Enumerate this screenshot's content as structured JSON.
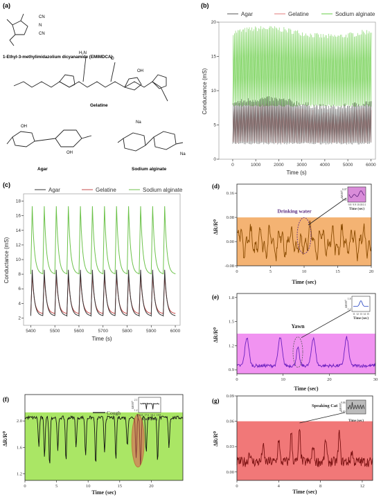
{
  "panels": {
    "a": {
      "label": "(a)",
      "compounds": [
        {
          "name": "1-Ethyl-3-methylimidazolium dicyanamide (EMIMDCA)"
        },
        {
          "name": "Gelatine"
        },
        {
          "name": "Agar"
        },
        {
          "name": "Sodium alginate"
        }
      ],
      "atoms": {
        "cn": "CN",
        "n": "N",
        "na": "Na",
        "oh": "OH",
        "o": "O",
        "nh2": "NH₂",
        "h2n": "H₂N",
        "nh": "NH"
      }
    }
  },
  "chart_data": [
    {
      "id": "b",
      "label": "(b)",
      "type": "line",
      "xlabel": "Time (s)",
      "ylabel": "Conductance (mS)",
      "xlim": [
        -600,
        6200
      ],
      "ylim": [
        0,
        20
      ],
      "xticks": [
        "0",
        "1000",
        "2000",
        "3000",
        "4000",
        "5000",
        "6000"
      ],
      "yticks": [
        "0",
        "5",
        "10",
        "15",
        "20"
      ],
      "legend": {
        "position": "top",
        "entries": [
          "Agar",
          "Gelatine",
          "Sodium alginate"
        ]
      },
      "series": [
        {
          "name": "Agar",
          "color": "#555555",
          "peak": 8.2,
          "base": 2.3
        },
        {
          "name": "Gelatine",
          "color": "#e07a7a",
          "peak": 7.2,
          "base": 2.5
        },
        {
          "name": "Sodium alginate",
          "color": "#66cc44",
          "peak": 18.5,
          "base": 7.8
        }
      ],
      "x_range": [
        0,
        6000
      ]
    },
    {
      "id": "c",
      "label": "(c)",
      "type": "line",
      "xlabel": "Time (s)",
      "ylabel": "Conductance (mS)",
      "xlim": [
        5370,
        6020
      ],
      "ylim": [
        1,
        19
      ],
      "xticks": [
        "5400",
        "5500",
        "5600",
        "5700",
        "5800",
        "5900",
        "6000"
      ],
      "yticks": [
        "2",
        "4",
        "6",
        "8",
        "10",
        "12",
        "14",
        "16",
        "18"
      ],
      "legend": {
        "position": "top",
        "entries": [
          "Agar",
          "Gelatine",
          "Sodium alginate"
        ]
      },
      "series": [
        {
          "name": "Agar",
          "color": "#333333",
          "peak": 8.6,
          "base": 2.3
        },
        {
          "name": "Gelatine",
          "color": "#c74a4a",
          "peak": 8.0,
          "base": 2.6
        },
        {
          "name": "Sodium alginate",
          "color": "#6cc24a",
          "peak": 17.3,
          "base": 8.0
        }
      ],
      "period": 50,
      "start": 5400
    },
    {
      "id": "d",
      "label": "(d)",
      "type": "line",
      "xlabel": "Time (sec)",
      "ylabel": "ΔR/R⁰",
      "xlim": [
        0,
        20
      ],
      "ylim": [
        -0.08,
        0.19
      ],
      "xticks": [
        "0",
        "5",
        "10",
        "15",
        "20"
      ],
      "yticks": [
        "-0.08",
        "0.00",
        "0.08",
        "0.16"
      ],
      "band": {
        "from": -0.08,
        "to": 0.08,
        "color": "#f2a65a"
      },
      "line_color": "#8a4b00",
      "annotation": "Drinking water",
      "annotation_color": "#5a2d82",
      "inset": {
        "xlabel": "Time (sec)",
        "ylabel": "ΔR/R⁰",
        "xticks": [
          "9.8",
          "9.9",
          "10.0",
          "10.1"
        ],
        "yticks": [
          "0.07",
          "0.00"
        ],
        "bg": "#d98cd9",
        "line_color": "#5a1e7a"
      }
    },
    {
      "id": "e",
      "label": "(e)",
      "type": "line",
      "xlabel": "Time (sec)",
      "ylabel": "ΔR/R⁰",
      "xlim": [
        0,
        30
      ],
      "ylim": [
        0.85,
        1.85
      ],
      "xticks": [
        "0",
        "10",
        "20",
        "30"
      ],
      "yticks": [
        "0.9",
        "1.2",
        "1.5",
        "1.8"
      ],
      "band": {
        "from": 0.85,
        "to": 1.35,
        "color": "#ee80ee"
      },
      "line_color": "#6a1fbf",
      "annotation": "Yawn",
      "annotation_color": "#222222",
      "inset": {
        "xlabel": "Time (sec)",
        "ylabel": "ΔR/R⁰",
        "xticks": [
          "11",
          "12",
          "13",
          "14",
          "15"
        ],
        "yticks": [
          "1.8",
          "1.2"
        ],
        "bg": "#ffffff",
        "line_color": "#1f3fbf"
      }
    },
    {
      "id": "f",
      "label": "(f)",
      "type": "line",
      "xlabel": "Time (sec)",
      "ylabel": "ΔR/R⁰",
      "xlim": [
        0,
        25
      ],
      "ylim": [
        1.1,
        2.4
      ],
      "xticks": [
        "0",
        "5",
        "10",
        "15",
        "20"
      ],
      "yticks": [
        "1.2",
        "1.6",
        "2.0"
      ],
      "band": {
        "from": 1.1,
        "to": 2.13,
        "color": "#9be24a"
      },
      "line_color": "#111111",
      "legend_entry": "Cough",
      "annotation_color": "#cc2222",
      "inset": {
        "xlabel": "Time (sec)",
        "ylabel": "ΔR/R⁰",
        "xticks": [
          "16.8",
          "17.6",
          "18.2",
          "18.8"
        ],
        "yticks": [
          "2.1",
          "1.2"
        ],
        "bg": "#ffffff",
        "line_color": "#111111"
      }
    },
    {
      "id": "g",
      "label": "(g)",
      "type": "line",
      "xlabel": "Time (sec)",
      "ylabel": "ΔR/R⁰",
      "xlim": [
        0,
        13
      ],
      "ylim": [
        -0.01,
        0.09
      ],
      "xticks": [
        "0",
        "4",
        "8",
        "12"
      ],
      "yticks": [
        "0.00",
        "0.03",
        "0.06",
        "0.09"
      ],
      "band": {
        "from": -0.01,
        "to": 0.06,
        "color": "#ee6060"
      },
      "line_color": "#7a1010",
      "annotation": "Speaking Cat",
      "annotation_color": "#222222",
      "inset": {
        "xlabel": "Time (sec)",
        "ylabel": "ΔR/R⁰",
        "xticks": [],
        "yticks": [
          "0.06",
          "0.00"
        ],
        "bg": "#bbbbbb",
        "line_color": "#333333"
      }
    }
  ]
}
